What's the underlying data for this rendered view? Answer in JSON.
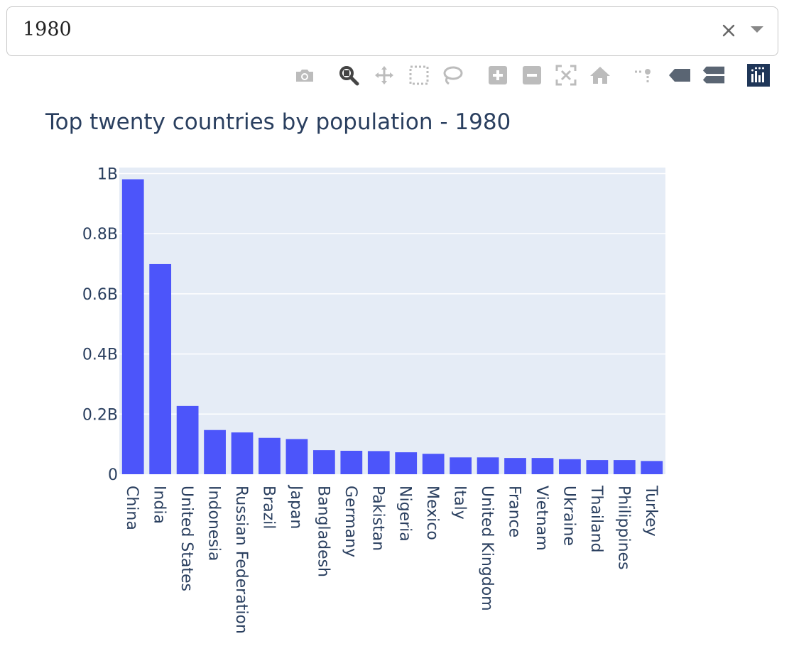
{
  "dropdown": {
    "value": "1980"
  },
  "modebar": {
    "buttons": [
      {
        "name": "camera-icon",
        "color": "#bcbcbc"
      },
      {
        "name": "zoom-icon",
        "color": "#444444"
      },
      {
        "name": "pan-icon",
        "color": "#bcbcbc"
      },
      {
        "name": "box-select-icon",
        "color": "#bcbcbc"
      },
      {
        "name": "lasso-icon",
        "color": "#bcbcbc"
      },
      {
        "name": "zoom-in-icon",
        "color": "#bcbcbc"
      },
      {
        "name": "zoom-out-icon",
        "color": "#bcbcbc"
      },
      {
        "name": "autoscale-icon",
        "color": "#bcbcbc"
      },
      {
        "name": "reset-axes-icon",
        "color": "#bcbcbc"
      },
      {
        "name": "spike-lines-icon",
        "color": "#bcbcbc"
      },
      {
        "name": "hover-closest-icon",
        "color": "#5a6573"
      },
      {
        "name": "hover-compare-icon",
        "color": "#5a6573"
      },
      {
        "name": "plotly-logo-icon",
        "color": "#1f3658"
      }
    ]
  },
  "colors": {
    "bar": "#4c55fa",
    "plot_bg": "#e5ecf6",
    "grid": "#ffffff",
    "text": "#2a3f5f"
  },
  "chart_data": {
    "type": "bar",
    "title": "Top twenty countries by population - 1980",
    "xlabel": "",
    "ylabel": "",
    "ylim": [
      0,
      1.02
    ],
    "y_unit": "billions",
    "yticks": [
      {
        "value": 0,
        "label": "0"
      },
      {
        "value": 0.2,
        "label": "0.2B"
      },
      {
        "value": 0.4,
        "label": "0.4B"
      },
      {
        "value": 0.6,
        "label": "0.6B"
      },
      {
        "value": 0.8,
        "label": "0.8B"
      },
      {
        "value": 1.0,
        "label": "1B"
      }
    ],
    "grid": true,
    "categories": [
      "China",
      "India",
      "United States",
      "Indonesia",
      "Russian Federation",
      "Brazil",
      "Japan",
      "Bangladesh",
      "Germany",
      "Pakistan",
      "Nigeria",
      "Mexico",
      "Italy",
      "United Kingdom",
      "France",
      "Vietnam",
      "Ukraine",
      "Thailand",
      "Philippines",
      "Turkey"
    ],
    "values": [
      0.981,
      0.699,
      0.227,
      0.147,
      0.139,
      0.121,
      0.117,
      0.08,
      0.078,
      0.077,
      0.073,
      0.068,
      0.056,
      0.056,
      0.054,
      0.054,
      0.05,
      0.047,
      0.047,
      0.044
    ]
  }
}
